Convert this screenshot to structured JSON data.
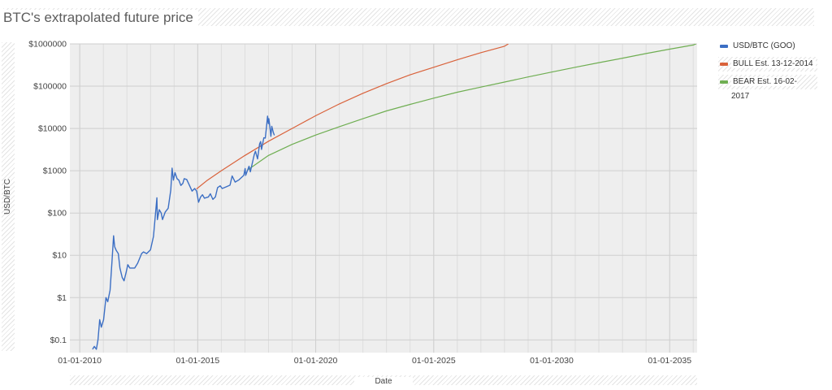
{
  "chart_data": {
    "type": "line",
    "title": "BTC's extrapolated future price",
    "xlabel": "Date",
    "ylabel": "USD/BTC",
    "yscale": "log",
    "ylim": [
      0.05,
      1000000
    ],
    "xlim": [
      "2009-08-01",
      "2036-03-01"
    ],
    "grid": true,
    "legend_position": "right",
    "y_ticks": [
      0.1,
      1,
      10,
      100,
      1000,
      10000,
      100000,
      1000000
    ],
    "y_tick_labels": [
      "$0.1",
      "$1",
      "$10",
      "$100",
      "$1000",
      "$10000",
      "$100000",
      "$1000000"
    ],
    "x_ticks": [
      "2010-01-01",
      "2015-01-01",
      "2020-01-01",
      "2025-01-01",
      "2030-01-01",
      "2035-01-01"
    ],
    "x_tick_labels": [
      "01-01-2010",
      "01-01-2015",
      "01-01-2020",
      "01-01-2025",
      "01-01-2030",
      "01-01-2035"
    ],
    "series": [
      {
        "name": "USD/BTC (GOO)",
        "color": "#3c6fc4",
        "points": [
          [
            "2010-07-18",
            0.06
          ],
          [
            "2010-08-15",
            0.07
          ],
          [
            "2010-09-15",
            0.06
          ],
          [
            "2010-10-10",
            0.1
          ],
          [
            "2010-11-06",
            0.3
          ],
          [
            "2010-12-01",
            0.2
          ],
          [
            "2011-01-05",
            0.3
          ],
          [
            "2011-02-10",
            1.0
          ],
          [
            "2011-03-10",
            0.8
          ],
          [
            "2011-04-15",
            1.5
          ],
          [
            "2011-05-15",
            7
          ],
          [
            "2011-06-08",
            29
          ],
          [
            "2011-06-25",
            16
          ],
          [
            "2011-07-20",
            13
          ],
          [
            "2011-08-20",
            11
          ],
          [
            "2011-09-15",
            5
          ],
          [
            "2011-10-20",
            3
          ],
          [
            "2011-11-18",
            2.5
          ],
          [
            "2011-12-20",
            4
          ],
          [
            "2012-01-15",
            6
          ],
          [
            "2012-02-15",
            5
          ],
          [
            "2012-03-15",
            5
          ],
          [
            "2012-05-01",
            5
          ],
          [
            "2012-06-15",
            6.5
          ],
          [
            "2012-08-15",
            11
          ],
          [
            "2012-09-15",
            12
          ],
          [
            "2012-11-01",
            11
          ],
          [
            "2012-12-31",
            13.5
          ],
          [
            "2013-02-15",
            28
          ],
          [
            "2013-04-09",
            230
          ],
          [
            "2013-04-17",
            70
          ],
          [
            "2013-05-15",
            120
          ],
          [
            "2013-06-15",
            100
          ],
          [
            "2013-07-05",
            70
          ],
          [
            "2013-08-15",
            105
          ],
          [
            "2013-10-01",
            130
          ],
          [
            "2013-11-10",
            350
          ],
          [
            "2013-11-30",
            1150
          ],
          [
            "2013-12-20",
            600
          ],
          [
            "2014-01-15",
            900
          ],
          [
            "2014-02-15",
            650
          ],
          [
            "2014-03-15",
            600
          ],
          [
            "2014-04-15",
            450
          ],
          [
            "2014-05-15",
            500
          ],
          [
            "2014-06-05",
            650
          ],
          [
            "2014-07-15",
            620
          ],
          [
            "2014-08-18",
            480
          ],
          [
            "2014-10-05",
            330
          ],
          [
            "2014-11-15",
            380
          ],
          [
            "2014-12-15",
            330
          ],
          [
            "2015-01-14",
            180
          ],
          [
            "2015-02-15",
            240
          ],
          [
            "2015-03-15",
            270
          ],
          [
            "2015-04-15",
            225
          ],
          [
            "2015-06-15",
            240
          ],
          [
            "2015-07-15",
            285
          ],
          [
            "2015-08-24",
            210
          ],
          [
            "2015-10-01",
            240
          ],
          [
            "2015-11-04",
            400
          ],
          [
            "2015-12-15",
            440
          ],
          [
            "2016-01-15",
            380
          ],
          [
            "2016-03-15",
            415
          ],
          [
            "2016-05-15",
            455
          ],
          [
            "2016-06-17",
            750
          ],
          [
            "2016-08-02",
            540
          ],
          [
            "2016-10-01",
            610
          ],
          [
            "2016-12-15",
            780
          ],
          [
            "2017-01-04",
            1130
          ],
          [
            "2017-01-12",
            780
          ],
          [
            "2017-03-05",
            1280
          ],
          [
            "2017-03-25",
            940
          ],
          [
            "2017-05-25",
            2400
          ],
          [
            "2017-06-12",
            2900
          ],
          [
            "2017-07-15",
            1900
          ],
          [
            "2017-08-15",
            4300
          ],
          [
            "2017-09-01",
            4900
          ],
          [
            "2017-09-15",
            3200
          ],
          [
            "2017-10-20",
            6000
          ],
          [
            "2017-11-12",
            5900
          ],
          [
            "2017-11-28",
            10000
          ],
          [
            "2017-12-17",
            19500
          ],
          [
            "2017-12-30",
            13000
          ],
          [
            "2018-01-06",
            17000
          ],
          [
            "2018-01-20",
            11500
          ],
          [
            "2018-02-06",
            6500
          ],
          [
            "2018-02-20",
            11200
          ],
          [
            "2018-03-18",
            7900
          ],
          [
            "2018-04-01",
            6900
          ]
        ]
      },
      {
        "name": "BULL Est. 13-12-2014",
        "color": "#d9623b",
        "points": [
          [
            "2014-12-13",
            370
          ],
          [
            "2015-06-01",
            600
          ],
          [
            "2016-01-01",
            1000
          ],
          [
            "2017-01-01",
            2300
          ],
          [
            "2018-01-01",
            5000
          ],
          [
            "2019-01-01",
            10000
          ],
          [
            "2020-01-01",
            20000
          ],
          [
            "2021-01-01",
            38000
          ],
          [
            "2022-01-01",
            68000
          ],
          [
            "2023-01-01",
            115000
          ],
          [
            "2024-01-01",
            185000
          ],
          [
            "2025-01-01",
            280000
          ],
          [
            "2026-01-01",
            420000
          ],
          [
            "2027-01-01",
            620000
          ],
          [
            "2028-01-01",
            880000
          ],
          [
            "2028-03-01",
            1000000
          ]
        ]
      },
      {
        "name": "BEAR Est. 16-02-2017",
        "color": "#6fae52",
        "points": [
          [
            "2017-02-16",
            1050
          ],
          [
            "2018-01-01",
            2300
          ],
          [
            "2019-01-01",
            4200
          ],
          [
            "2020-01-01",
            7000
          ],
          [
            "2021-01-01",
            11000
          ],
          [
            "2022-01-01",
            17000
          ],
          [
            "2023-01-01",
            26000
          ],
          [
            "2024-01-01",
            37000
          ],
          [
            "2025-01-01",
            52000
          ],
          [
            "2026-01-01",
            72000
          ],
          [
            "2027-01-01",
            95000
          ],
          [
            "2028-01-01",
            125000
          ],
          [
            "2029-01-01",
            165000
          ],
          [
            "2030-01-01",
            215000
          ],
          [
            "2031-01-01",
            280000
          ],
          [
            "2032-01-01",
            360000
          ],
          [
            "2033-01-01",
            460000
          ],
          [
            "2034-01-01",
            590000
          ],
          [
            "2035-01-01",
            750000
          ],
          [
            "2036-01-01",
            940000
          ],
          [
            "2036-02-15",
            1000000
          ]
        ]
      }
    ]
  }
}
